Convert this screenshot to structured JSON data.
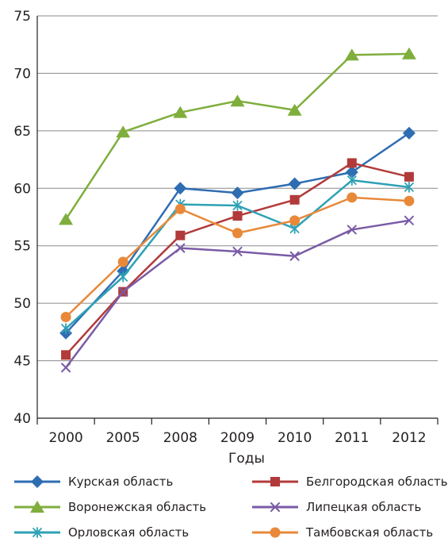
{
  "chart_data": {
    "type": "line",
    "title": "",
    "xlabel": "Годы",
    "ylabel": "",
    "categories": [
      "2000",
      "2005",
      "2008",
      "2009",
      "2010",
      "2011",
      "2012"
    ],
    "ylim": [
      40,
      75
    ],
    "yticks": [
      40,
      45,
      50,
      55,
      60,
      65,
      70,
      75
    ],
    "grid": true,
    "legend_position": "bottom",
    "series": [
      {
        "name": "Курская область",
        "color": "#2f6db3",
        "marker": "diamond",
        "values": [
          47.4,
          52.8,
          60.0,
          59.6,
          60.4,
          61.4,
          64.8
        ]
      },
      {
        "name": "Белгородская область",
        "color": "#b23a3a",
        "marker": "square",
        "values": [
          45.5,
          51.0,
          55.9,
          57.6,
          59.0,
          62.2,
          61.0
        ]
      },
      {
        "name": "Воронежская область",
        "color": "#7fae3c",
        "marker": "triangle",
        "values": [
          57.3,
          64.9,
          66.6,
          67.6,
          66.8,
          71.6,
          71.7
        ]
      },
      {
        "name": "Липецкая область",
        "color": "#7a5ba6",
        "marker": "x",
        "values": [
          44.4,
          51.0,
          54.8,
          54.5,
          54.1,
          56.4,
          57.2
        ]
      },
      {
        "name": "Орловская область",
        "color": "#2ea1b5",
        "marker": "star",
        "values": [
          47.8,
          52.3,
          58.6,
          58.5,
          56.5,
          60.7,
          60.1
        ]
      },
      {
        "name": "Тамбовская область",
        "color": "#e8893a",
        "marker": "circle",
        "values": [
          48.8,
          53.6,
          58.2,
          56.1,
          57.2,
          59.2,
          58.9
        ]
      }
    ]
  }
}
